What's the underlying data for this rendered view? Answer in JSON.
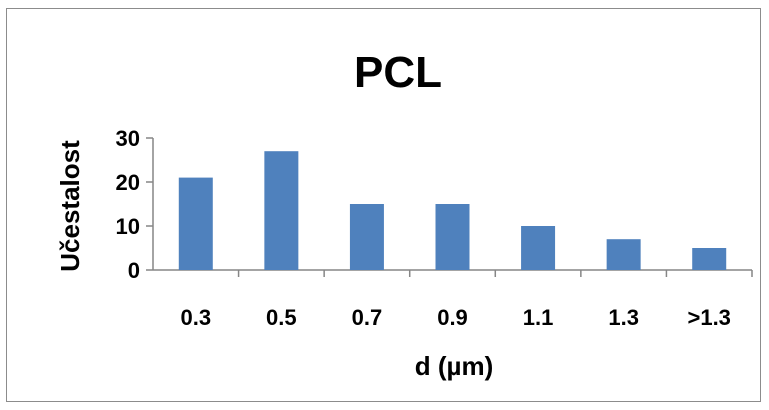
{
  "chart_data": {
    "type": "bar",
    "title": "PCL",
    "xlabel": "d (µm)",
    "ylabel": "Učestalost",
    "categories": [
      "0.3",
      "0.5",
      "0.7",
      "0.9",
      "1.1",
      "1.3",
      ">1.3"
    ],
    "values": [
      21,
      27,
      15,
      15,
      10,
      7,
      5
    ],
    "ylim": [
      0,
      30
    ],
    "yticks": [
      "0",
      "10",
      "20",
      "30"
    ],
    "grid": false,
    "legend": "none",
    "bar_color": "#4f81bd"
  }
}
